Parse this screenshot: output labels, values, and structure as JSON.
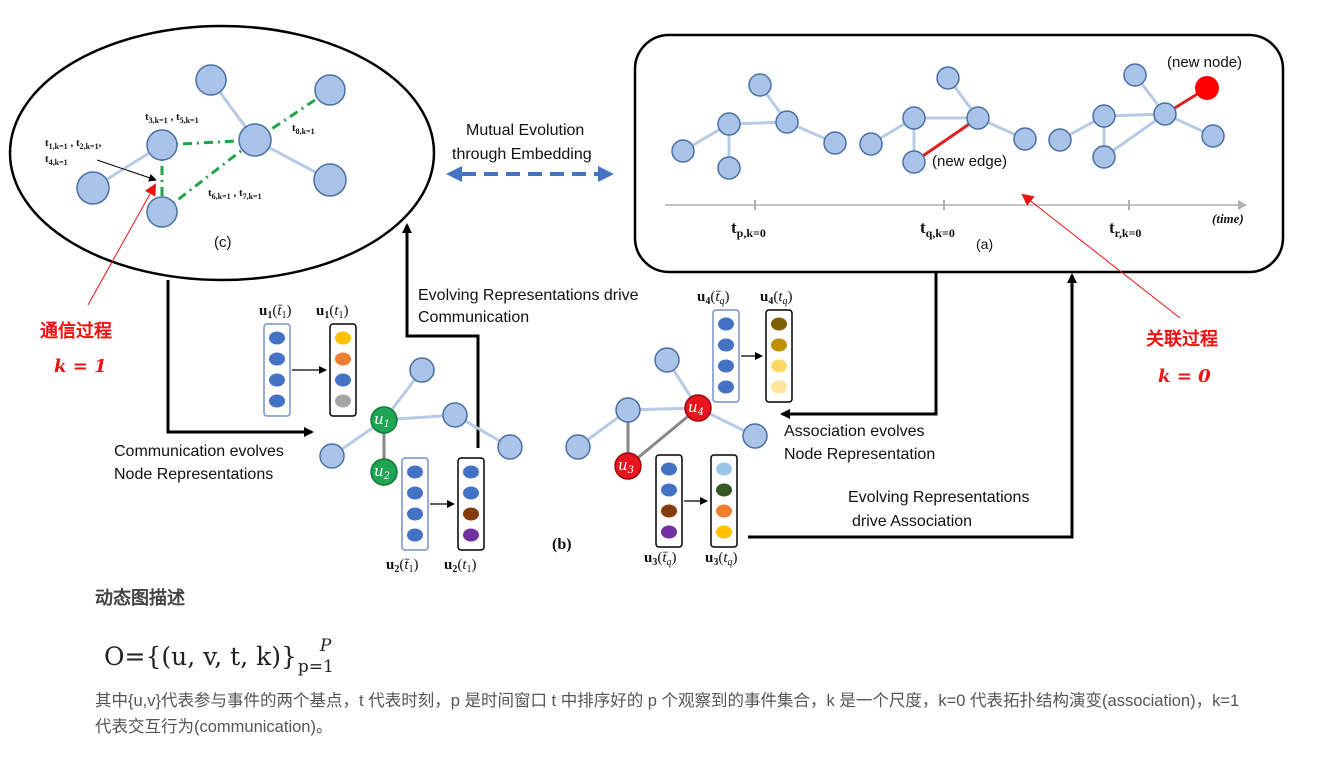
{
  "figure": {
    "panel_a_caption": "(a)",
    "panel_b_caption": "(b)",
    "panel_c_caption": "(c)",
    "new_node_label": "(new node)",
    "new_edge_label": "(new edge)",
    "time_label": "(time)",
    "time_ticks": [
      "t",
      "t",
      "t"
    ],
    "mutual_evolution_line1": "Mutual Evolution",
    "mutual_evolution_line2": "through Embedding",
    "evolving_comm_line1": "Evolving Representations drive",
    "evolving_comm_line2": "Communication",
    "comm_evolves_line1": "Communication evolves",
    "comm_evolves_line2": "Node Representations",
    "assoc_evolves_line1": "Association evolves",
    "assoc_evolves_line2": "Node Representation",
    "evolving_assoc_line1": "Evolving Representations",
    "evolving_assoc_line2": "drive Association",
    "communication_process_cn": "通信过程",
    "communication_k": "k = 1",
    "association_process_cn": "关联过程",
    "association_k": "k = 0",
    "node_u1": "u",
    "node_u2": "u",
    "node_u3": "u",
    "node_u4": "u",
    "node_u1_sub": "1",
    "node_u2_sub": "2",
    "node_u3_sub": "3",
    "node_u4_sub": "4",
    "vector_labels": {
      "u1_prev": "u",
      "u1_now": "u",
      "u2_prev": "u",
      "u2_now": "u",
      "u3_prev": "u",
      "u3_now": "u",
      "u4_prev": "u",
      "u4_now": "u"
    }
  },
  "caption_title": "动态图描述",
  "formula": "O={(u, v, t, k)}",
  "formula_sub": "p=1",
  "formula_sup": "P",
  "description": "其中{u,v}代表参与事件的两个基点，t 代表时刻，p 是时间窗口 t 中排序好的 p 个观察到的事件集合，k 是一个尺度，k=0 代表拓扑结构演变(association)，k=1 代表交互行为(communication)。",
  "colors": {
    "node_fill": "#a9c4e8",
    "node_stroke": "#4a6fa5",
    "green_node": "#1ea552",
    "red_node": "#e8141e",
    "dash_green": "#21a348",
    "arrow_blue": "#4472c4",
    "vector_blue": "#4472c4"
  }
}
